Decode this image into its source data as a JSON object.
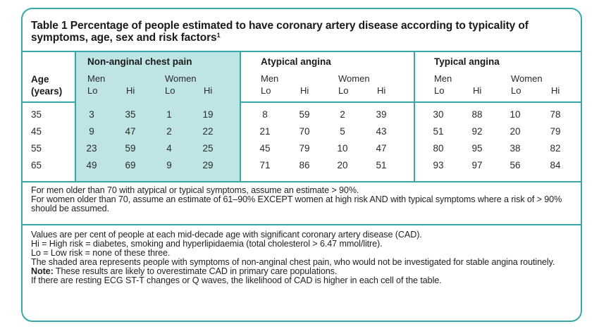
{
  "table": {
    "title": "Table 1 Percentage of people estimated to have coronary artery disease according to typicality of symptoms, age, sex and risk factors",
    "title_footnote": "1",
    "age_header_line1": "Age",
    "age_header_line2": "(years)",
    "groups": [
      {
        "title": "Non-anginal chest pain",
        "men": "Men",
        "women": "Women",
        "lo": "Lo",
        "hi": "Hi",
        "shaded": true
      },
      {
        "title": "Atypical angina",
        "men": "Men",
        "women": "Women",
        "lo": "Lo",
        "hi": "Hi",
        "shaded": false
      },
      {
        "title": "Typical angina",
        "men": "Men",
        "women": "Women",
        "lo": "Lo",
        "hi": "Hi",
        "shaded": false
      }
    ],
    "rows": [
      {
        "age": "35",
        "values": [
          "3",
          "35",
          "1",
          "19",
          "8",
          "59",
          "2",
          "39",
          "30",
          "88",
          "10",
          "78"
        ]
      },
      {
        "age": "45",
        "values": [
          "9",
          "47",
          "2",
          "22",
          "21",
          "70",
          "5",
          "43",
          "51",
          "92",
          "20",
          "79"
        ]
      },
      {
        "age": "55",
        "values": [
          "23",
          "59",
          "4",
          "25",
          "45",
          "79",
          "10",
          "47",
          "80",
          "95",
          "38",
          "82"
        ]
      },
      {
        "age": "65",
        "values": [
          "49",
          "69",
          "9",
          "29",
          "71",
          "86",
          "20",
          "51",
          "93",
          "97",
          "56",
          "84"
        ]
      }
    ],
    "notes_a": [
      "For men older than 70 with atypical or typical symptoms, assume an estimate > 90%.",
      "For women older than 70, assume an estimate of 61–90% EXCEPT women at high risk AND with typical symptoms where a risk of > 90% should be assumed."
    ],
    "notes_b": [
      "Values are per cent of people at each mid-decade age with significant coronary artery disease (CAD).",
      "Hi = High risk = diabetes, smoking and hyperlipidaemia (total cholesterol > 6.47 mmol/litre).",
      "Lo = Low risk = none of these three.",
      "The shaded area represents people with symptoms of non-anginal chest pain, who would not be investigated for stable angina routinely."
    ],
    "note_label": "Note:",
    "note_text": " These results are likely to overestimate CAD in primary care populations.",
    "last_line": "If there are resting ECG ST-T changes or Q waves, the likelihood of CAD is higher in each cell of the table."
  },
  "colors": {
    "border": "#36a9a7",
    "shade": "#bfe4e6"
  }
}
